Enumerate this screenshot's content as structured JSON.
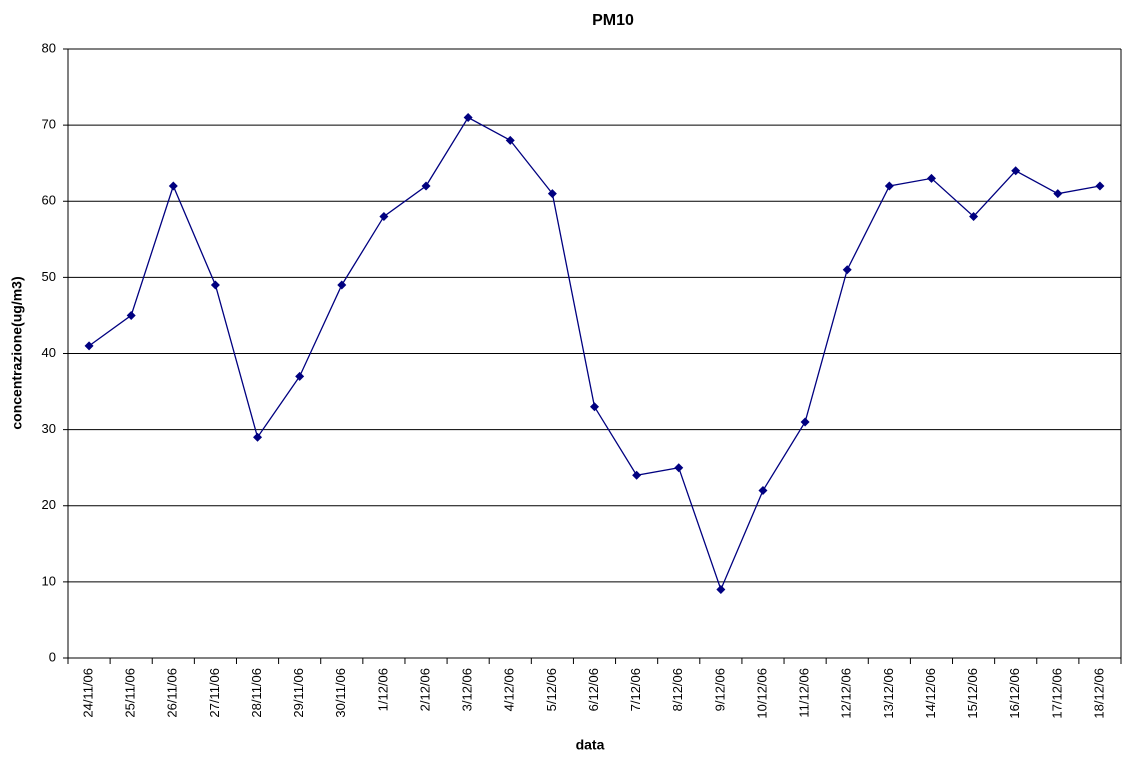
{
  "chart_data": {
    "type": "line",
    "title": "PM10",
    "x_label": "data",
    "y_label": "concentrazione(ug/m3)",
    "categories": [
      "24/11/06",
      "25/11/06",
      "26/11/06",
      "27/11/06",
      "28/11/06",
      "29/11/06",
      "30/11/06",
      "1/12/06",
      "2/12/06",
      "3/12/06",
      "4/12/06",
      "5/12/06",
      "6/12/06",
      "7/12/06",
      "8/12/06",
      "9/12/06",
      "10/12/06",
      "11/12/06",
      "12/12/06",
      "13/12/06",
      "14/12/06",
      "15/12/06",
      "16/12/06",
      "17/12/06",
      "18/12/06"
    ],
    "values": [
      41,
      45,
      62,
      49,
      29,
      37,
      49,
      58,
      62,
      71,
      68,
      61,
      33,
      24,
      25,
      9,
      22,
      31,
      51,
      62,
      63,
      58,
      64,
      61,
      62
    ],
    "color": "#000080",
    "ylim": [
      0,
      80
    ],
    "yticks": [
      0,
      10,
      20,
      30,
      40,
      50,
      60,
      70,
      80
    ],
    "grid": true
  }
}
